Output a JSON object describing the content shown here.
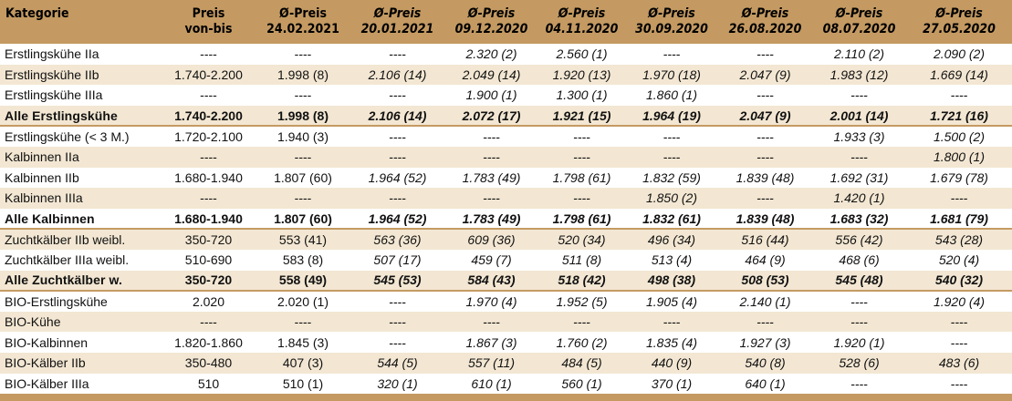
{
  "header": {
    "col0": "Kategorie",
    "col1": [
      "Preis",
      "von-bis"
    ],
    "col2": [
      "Ø-Preis",
      "24.02.2021"
    ],
    "col3": [
      "Ø-Preis",
      "20.01.2021"
    ],
    "col4": [
      "Ø-Preis",
      "09.12.2020"
    ],
    "col5": [
      "Ø-Preis",
      "04.11.2020"
    ],
    "col6": [
      "Ø-Preis",
      "30.09.2020"
    ],
    "col7": [
      "Ø-Preis",
      "26.08.2020"
    ],
    "col8": [
      "Ø-Preis",
      "08.07.2020"
    ],
    "col9": [
      "Ø-Preis",
      "27.05.2020"
    ]
  },
  "rows": [
    {
      "cells": [
        "Erstlingskühe IIa",
        "----",
        "----",
        "----",
        "2.320 (2)",
        "2.560 (1)",
        "----",
        "----",
        "2.110 (2)",
        "2.090 (2)"
      ]
    },
    {
      "cells": [
        "Erstlingskühe IIb",
        "1.740-2.200",
        "1.998 (8)",
        "2.106 (14)",
        "2.049 (14)",
        "1.920 (13)",
        "1.970 (18)",
        "2.047 (9)",
        "1.983 (12)",
        "1.669 (14)"
      ]
    },
    {
      "cells": [
        "Erstlingskühe IIIa",
        "----",
        "----",
        "----",
        "1.900 (1)",
        "1.300 (1)",
        "1.860 (1)",
        "----",
        "----",
        "----"
      ]
    },
    {
      "cells": [
        "Alle Erstlingskühe",
        "1.740-2.200",
        "1.998 (8)",
        "2.106 (14)",
        "2.072 (17)",
        "1.921 (15)",
        "1.964 (19)",
        "2.047 (9)",
        "2.001 (14)",
        "1.721 (16)"
      ]
    },
    {
      "cells": [
        "Erstlingskühe (< 3 M.)",
        "1.720-2.100",
        "1.940 (3)",
        "----",
        "----",
        "----",
        "----",
        "----",
        "1.933 (3)",
        "1.500 (2)"
      ]
    },
    {
      "cells": [
        "Kalbinnen IIa",
        "----",
        "----",
        "----",
        "----",
        "----",
        "----",
        "----",
        "----",
        "1.800 (1)"
      ]
    },
    {
      "cells": [
        "Kalbinnen IIb",
        "1.680-1.940",
        "1.807 (60)",
        "1.964 (52)",
        "1.783 (49)",
        "1.798 (61)",
        "1.832 (59)",
        "1.839 (48)",
        "1.692 (31)",
        "1.679 (78)"
      ]
    },
    {
      "cells": [
        "Kalbinnen IIIa",
        "----",
        "----",
        "----",
        "----",
        "----",
        "1.850 (2)",
        "----",
        "1.420 (1)",
        "----"
      ]
    },
    {
      "cells": [
        "Alle Kalbinnen",
        "1.680-1.940",
        "1.807 (60)",
        "1.964 (52)",
        "1.783 (49)",
        "1.798 (61)",
        "1.832 (61)",
        "1.839 (48)",
        "1.683 (32)",
        "1.681 (79)"
      ]
    },
    {
      "cells": [
        "Zuchtkälber IIb weibl.",
        "350-720",
        "553 (41)",
        "563 (36)",
        "609 (36)",
        "520 (34)",
        "496 (34)",
        "516 (44)",
        "556 (42)",
        "543 (28)"
      ]
    },
    {
      "cells": [
        "Zuchtkälber IIIa weibl.",
        "510-690",
        "583 (8)",
        "507 (17)",
        "459 (7)",
        "511 (8)",
        "513 (4)",
        "464 (9)",
        "468 (6)",
        "520 (4)"
      ]
    },
    {
      "cells": [
        "Alle Zuchtkälber w.",
        "350-720",
        "558 (49)",
        "545 (53)",
        "584 (43)",
        "518 (42)",
        "498 (38)",
        "508 (53)",
        "545 (48)",
        "540 (32)"
      ]
    },
    {
      "cells": [
        "BIO-Erstlingskühe",
        "2.020",
        "2.020 (1)",
        "----",
        "1.970 (4)",
        "1.952 (5)",
        "1.905 (4)",
        "2.140 (1)",
        "----",
        "1.920 (4)"
      ]
    },
    {
      "cells": [
        "BIO-Kühe",
        "----",
        "----",
        "----",
        "----",
        "----",
        "----",
        "----",
        "----",
        "----"
      ]
    },
    {
      "cells": [
        "BIO-Kalbinnen",
        "1.820-1.860",
        "1.845 (3)",
        "----",
        "1.867 (3)",
        "1.760 (2)",
        "1.835 (4)",
        "1.927 (3)",
        "1.920 (1)",
        "----"
      ]
    },
    {
      "cells": [
        "BIO-Kälber IIb",
        "350-480",
        "407 (3)",
        "544 (5)",
        "557 (11)",
        "484 (5)",
        "440 (9)",
        "540 (8)",
        "528 (6)",
        "483 (6)"
      ]
    },
    {
      "cells": [
        "BIO-Kälber IIIa",
        "510",
        "510 (1)",
        "320 (1)",
        "610 (1)",
        "560 (1)",
        "370 (1)",
        "640 (1)",
        "----",
        "----"
      ]
    }
  ]
}
